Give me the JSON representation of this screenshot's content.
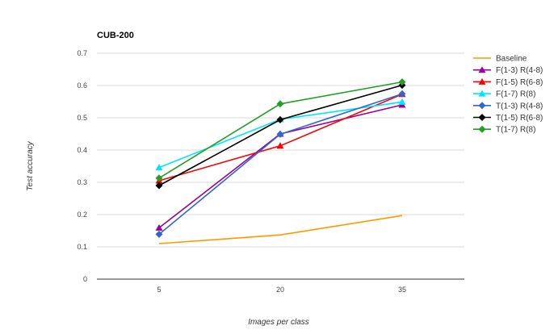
{
  "chart_data": {
    "type": "line",
    "title": "CUB-200",
    "xlabel": "Images per class",
    "ylabel": "Test accuracy",
    "x": [
      5,
      20,
      35
    ],
    "x_tick_labels": [
      "5",
      "20",
      "35"
    ],
    "ylim": [
      0,
      0.7
    ],
    "y_ticks": [
      0,
      0.1,
      0.2,
      0.3,
      0.4,
      0.5,
      0.6,
      0.7
    ],
    "y_tick_labels": [
      "0",
      "0.1",
      "0.2",
      "0.3",
      "0.4",
      "0.5",
      "0.6",
      "0.7"
    ],
    "grid": true,
    "legend_position": "right",
    "series": [
      {
        "name": "Baseline",
        "color": "#ff9900",
        "marker": "none",
        "values": [
          0.11,
          0.137,
          0.197
        ]
      },
      {
        "name": "F(1-3) R(4-8)",
        "color": "#990099",
        "marker": "triangle",
        "values": [
          0.159,
          0.45,
          0.54
        ]
      },
      {
        "name": "F(1-5) R(6-8)",
        "color": "#ff0000",
        "marker": "triangle",
        "values": [
          0.305,
          0.413,
          0.573
        ]
      },
      {
        "name": "F(1-7) R(8)",
        "color": "#00e5ff",
        "marker": "triangle",
        "values": [
          0.346,
          0.495,
          0.549
        ]
      },
      {
        "name": "T(1-3) R(4-8)",
        "color": "#3366cc",
        "marker": "diamond",
        "values": [
          0.139,
          0.449,
          0.574
        ]
      },
      {
        "name": "T(1-5) R(6-8)",
        "color": "#000000",
        "marker": "diamond",
        "values": [
          0.29,
          0.494,
          0.601
        ]
      },
      {
        "name": "T(1-7) R(8)",
        "color": "#22a022",
        "marker": "diamond",
        "values": [
          0.313,
          0.543,
          0.611
        ]
      }
    ]
  }
}
